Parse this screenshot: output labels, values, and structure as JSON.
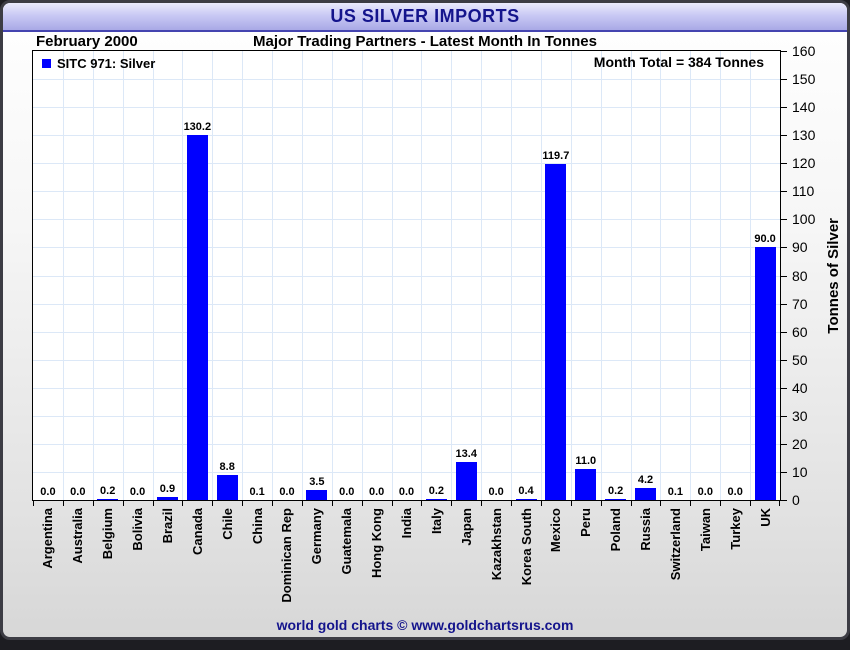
{
  "header": {
    "title": "US SILVER IMPORTS"
  },
  "subheader": {
    "date_label": "February 2000",
    "subtitle": "Major Trading Partners - Latest Month In Tonnes"
  },
  "legend": {
    "label": "SITC 971: Silver"
  },
  "annotations": {
    "month_total": "Month Total = 384 Tonnes"
  },
  "footer": {
    "credit": "world gold charts © www.goldchartsrus.com"
  },
  "colors": {
    "bar": "#0000ff",
    "grid": "#dce8f7",
    "title_text": "#14148c",
    "titlebar_gradient_top": "#eaeafc",
    "titlebar_gradient_bottom": "#a9a9e6"
  },
  "chart_data": {
    "type": "bar",
    "title": "US SILVER IMPORTS",
    "subtitle": "Major Trading Partners - Latest Month In Tonnes",
    "period": "February 2000",
    "series_name": "SITC 971: Silver",
    "month_total_tonnes": 384,
    "categories": [
      "Argentina",
      "Australia",
      "Belgium",
      "Bolivia",
      "Brazil",
      "Canada",
      "Chile",
      "China",
      "Dominican Rep",
      "Germany",
      "Guatemala",
      "Hong Kong",
      "India",
      "Italy",
      "Japan",
      "Kazakhstan",
      "Korea South",
      "Mexico",
      "Peru",
      "Poland",
      "Russia",
      "Switzerland",
      "Taiwan",
      "Turkey",
      "UK"
    ],
    "values": [
      0.0,
      0.0,
      0.2,
      0.0,
      0.9,
      130.2,
      8.8,
      0.1,
      0.0,
      3.5,
      0.0,
      0.0,
      0.0,
      0.2,
      13.4,
      0.0,
      0.4,
      119.7,
      11.0,
      0.2,
      4.2,
      0.1,
      0.0,
      0.0,
      90.0
    ],
    "xlabel": "",
    "ylabel": "Tonnes of Silver",
    "ylim": [
      0,
      160
    ],
    "ytick_step": 10,
    "yaxis_side": "right",
    "grid": true,
    "legend_position": "top-left",
    "value_labels": "one-decimal"
  }
}
